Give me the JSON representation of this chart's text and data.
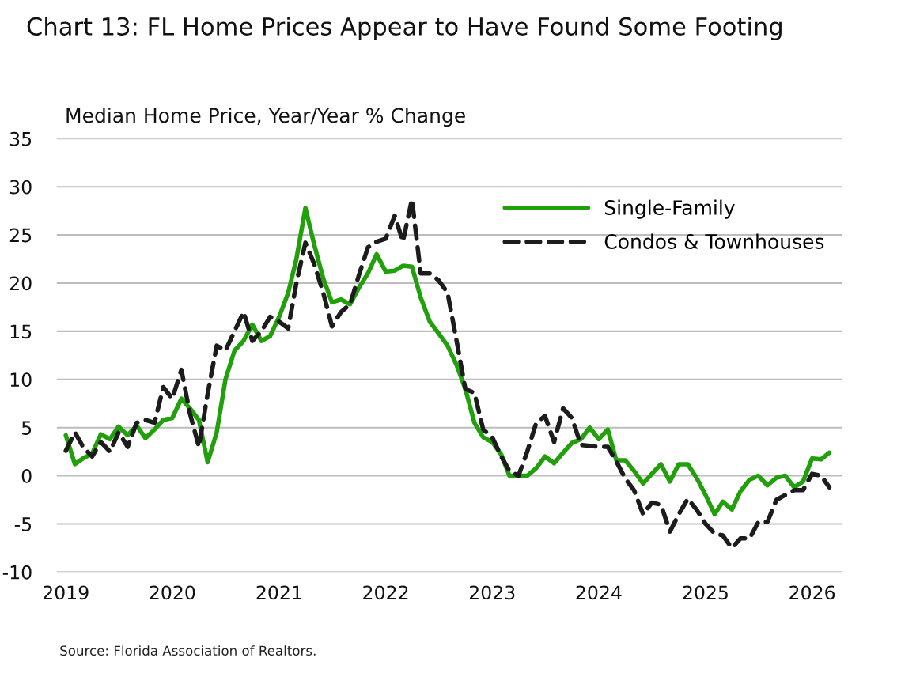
{
  "chart_data": {
    "type": "line",
    "title": "Chart 13: FL Home Prices Appear to Have Found Some Footing",
    "ylabel": "Median Home Price, Year/Year % Change",
    "annotations": [
      "Source: Florida Association of Realtors."
    ],
    "x": [
      "2019-01",
      "2019-02",
      "2019-03",
      "2019-04",
      "2019-05",
      "2019-06",
      "2019-07",
      "2019-08",
      "2019-09",
      "2019-10",
      "2019-11",
      "2019-12",
      "2020-01",
      "2020-02",
      "2020-03",
      "2020-04",
      "2020-05",
      "2020-06",
      "2020-07",
      "2020-08",
      "2020-09",
      "2020-10",
      "2020-11",
      "2020-12",
      "2021-01",
      "2021-02",
      "2021-03",
      "2021-04",
      "2021-05",
      "2021-06",
      "2021-07",
      "2021-08",
      "2021-09",
      "2021-10",
      "2021-11",
      "2021-12",
      "2022-01",
      "2022-02",
      "2022-03",
      "2022-04",
      "2022-05",
      "2022-06",
      "2022-07",
      "2022-08",
      "2022-09",
      "2022-10",
      "2022-11",
      "2022-12",
      "2023-01",
      "2023-02",
      "2023-03",
      "2023-04",
      "2023-05",
      "2023-06",
      "2023-07",
      "2023-08",
      "2023-09",
      "2023-10",
      "2023-11",
      "2023-12",
      "2024-01",
      "2024-02",
      "2024-03",
      "2024-04",
      "2024-05",
      "2024-06",
      "2024-07",
      "2024-08",
      "2024-09",
      "2024-10",
      "2024-11",
      "2024-12",
      "2025-01",
      "2025-02",
      "2025-03",
      "2025-04",
      "2025-05",
      "2025-06",
      "2025-07",
      "2025-08",
      "2025-09",
      "2025-10",
      "2025-11",
      "2025-12",
      "2026-01",
      "2026-02",
      "2026-03"
    ],
    "series": [
      {
        "name": "Single-Family",
        "color": "#22a00c",
        "line_style": "solid",
        "values": [
          4.2,
          1.2,
          1.8,
          2.3,
          4.3,
          3.8,
          5.1,
          4.2,
          5.2,
          3.9,
          4.8,
          5.8,
          6.0,
          8.0,
          7.0,
          5.8,
          1.4,
          4.5,
          10.0,
          13.0,
          14.0,
          15.7,
          14.0,
          14.5,
          16.5,
          19.0,
          22.5,
          27.8,
          24.0,
          20.5,
          18.0,
          18.3,
          17.8,
          19.5,
          21.0,
          23.0,
          21.2,
          21.3,
          21.8,
          21.7,
          18.5,
          16.0,
          14.8,
          13.5,
          11.5,
          9.0,
          5.5,
          4.0,
          3.5,
          2.2,
          0,
          0,
          0,
          0.8,
          2.0,
          1.3,
          2.4,
          3.4,
          3.8,
          5.0,
          3.8,
          4.8,
          1.6,
          1.6,
          0.5,
          -0.8,
          0.2,
          1.2,
          -0.6,
          1.2,
          1.2,
          -0.2,
          -2.0,
          -4.0,
          -2.7,
          -3.5,
          -1.6,
          -0.4,
          0.0,
          -1.0,
          -0.2,
          0.0,
          -1.2,
          -0.6,
          1.8,
          1.7,
          2.4
        ]
      },
      {
        "name": "Condos & Townhouses",
        "color": "#1c1c1c",
        "line_style": "dashed",
        "values": [
          2.6,
          4.5,
          3.0,
          2.0,
          3.5,
          2.5,
          4.5,
          3.0,
          5.5,
          5.8,
          5.5,
          9.2,
          8.0,
          11.0,
          6.5,
          3.0,
          8.5,
          13.5,
          13.0,
          15.0,
          17.0,
          14.0,
          15.0,
          16.5,
          16.0,
          15.3,
          20.0,
          24.2,
          22.0,
          19.0,
          15.5,
          17.0,
          17.8,
          20.8,
          23.7,
          24.3,
          24.6,
          27.0,
          24.3,
          28.7,
          21.0,
          21.0,
          20.3,
          19.0,
          14.0,
          9.0,
          8.6,
          4.8,
          4.0,
          2.0,
          0.5,
          0.0,
          2.5,
          5.5,
          6.2,
          3.5,
          7.0,
          6.0,
          3.2,
          3.1,
          3.0,
          3.0,
          1.5,
          -0.3,
          -1.5,
          -4.0,
          -2.8,
          -3.0,
          -5.8,
          -4.0,
          -2.4,
          -3.5,
          -5.0,
          -6.0,
          -6.2,
          -7.5,
          -6.5,
          -6.5,
          -4.8,
          -4.8,
          -2.5,
          -2.0,
          -1.5,
          -1.5,
          0.2,
          0.0,
          -1.2
        ]
      }
    ],
    "xlim": [
      "2018-12-01",
      "2026-04-15"
    ],
    "xticks": [
      "2019",
      "2020",
      "2021",
      "2022",
      "2023",
      "2024",
      "2025",
      "2026"
    ],
    "ylim": [
      -10,
      35
    ],
    "yticks": [
      -10,
      -5,
      0,
      5,
      10,
      15,
      20,
      25,
      30,
      35
    ],
    "grid": "y",
    "legend": "top right",
    "marker": "none"
  }
}
